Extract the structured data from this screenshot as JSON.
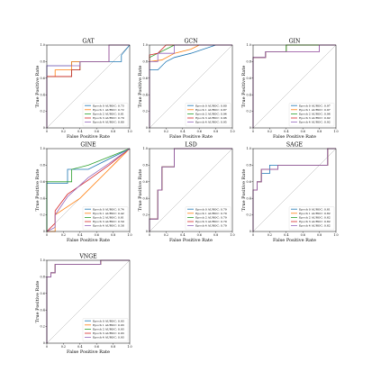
{
  "palette": [
    "#1f77b4",
    "#ff7f0e",
    "#2ca02c",
    "#d62728",
    "#9467bd"
  ],
  "chart_data": [
    {
      "type": "line",
      "title": "GAT",
      "xlabel": "False Positive Rate",
      "ylabel": "True Positive Rate",
      "xlim": [
        0,
        1
      ],
      "ylim": [
        0,
        1
      ],
      "xticks": [
        "0",
        "0.2",
        "0.4",
        "0.6",
        "0.8",
        "1.0"
      ],
      "yticks": [
        "0",
        "0.2",
        "0.4",
        "0.6",
        "0.8",
        "1.0"
      ],
      "legend_position": "lower-right",
      "series": [
        {
          "name": "Epoch 0 AUROC: 0.73",
          "x": [
            0,
            0,
            0.3,
            0.3,
            0.5,
            0.5,
            0.9,
            0.9,
            1.0
          ],
          "y": [
            0,
            0.75,
            0.75,
            0.8,
            0.8,
            0.8,
            0.8,
            0.88,
            1.0
          ]
        },
        {
          "name": "Epoch 1 AUROC: 0.72",
          "x": [
            0,
            0,
            0.1,
            0.1,
            0.3,
            0.3,
            0.75,
            0.75,
            1.0
          ],
          "y": [
            0,
            0.62,
            0.62,
            0.7,
            0.7,
            0.8,
            0.8,
            1.0,
            1.0
          ]
        },
        {
          "name": "Epoch 2 AUROC: 0.81",
          "x": [
            0,
            0,
            0.3,
            0.3,
            0.4,
            0.4,
            0.75,
            0.75,
            1.0
          ],
          "y": [
            0,
            0.62,
            0.62,
            0.7,
            0.7,
            0.8,
            0.8,
            1.0,
            1.0
          ]
        },
        {
          "name": "Epoch 3 AUROC: 0.79",
          "x": [
            0,
            0,
            0.3,
            0.3,
            0.4,
            0.4,
            0.75,
            0.75,
            1.0
          ],
          "y": [
            0,
            0.62,
            0.62,
            0.7,
            0.7,
            0.8,
            0.8,
            1.0,
            1.0
          ]
        },
        {
          "name": "Epoch 4 AUROC: 0.80",
          "x": [
            0,
            0,
            0.3,
            0.3,
            0.4,
            0.4,
            0.75,
            0.75,
            1.0
          ],
          "y": [
            0,
            0.75,
            0.75,
            0.75,
            0.75,
            0.8,
            0.8,
            1.0,
            1.0
          ]
        }
      ]
    },
    {
      "type": "line",
      "title": "GCN",
      "xlabel": "False Positive Rate",
      "ylabel": "True Positive Rate",
      "xlim": [
        0,
        1
      ],
      "ylim": [
        0,
        1
      ],
      "xticks": [
        "0",
        "0.2",
        "0.4",
        "0.6",
        "0.8",
        "1.0"
      ],
      "yticks": [
        "0",
        "0.2",
        "0.4",
        "0.6",
        "0.8",
        "1.0"
      ],
      "legend_position": "lower-right",
      "series": [
        {
          "name": "Epoch 0 AUROC: 0.80",
          "x": [
            0,
            0,
            0.1,
            0.2,
            0.3,
            0.5,
            0.8,
            1.0
          ],
          "y": [
            0,
            0.7,
            0.7,
            0.8,
            0.85,
            0.9,
            1.0,
            1.0
          ]
        },
        {
          "name": "Epoch 1 AUROC: 0.87",
          "x": [
            0,
            0,
            0.15,
            0.3,
            0.5,
            0.6,
            1.0
          ],
          "y": [
            0,
            0.8,
            0.82,
            0.9,
            0.95,
            1.0,
            1.0
          ]
        },
        {
          "name": "Epoch 2 AUROC: 0.94",
          "x": [
            0,
            0,
            0.1,
            0.2,
            0.3,
            0.4,
            1.0
          ],
          "y": [
            0,
            0.85,
            0.9,
            0.95,
            1.0,
            1.0,
            1.0
          ]
        },
        {
          "name": "Epoch 3 AUROC: 0.96",
          "x": [
            0,
            0,
            0.1,
            0.2,
            0.3,
            1.0
          ],
          "y": [
            0,
            0.88,
            0.9,
            1.0,
            1.0,
            1.0
          ]
        },
        {
          "name": "Epoch 4 AUROC: 0.95",
          "x": [
            0,
            0,
            0.1,
            0.1,
            0.3,
            0.3,
            1.0
          ],
          "y": [
            0,
            0.8,
            0.8,
            0.9,
            0.9,
            1.0,
            1.0
          ]
        }
      ]
    },
    {
      "type": "line",
      "title": "GIN",
      "xlabel": "False Positive Rate",
      "ylabel": "True Positive Rate",
      "xlim": [
        0,
        1
      ],
      "ylim": [
        0,
        1
      ],
      "xticks": [
        "0",
        "0.2",
        "0.4",
        "0.6",
        "0.8",
        "1.0"
      ],
      "yticks": [
        "0",
        "0.2",
        "0.4",
        "0.6",
        "0.8",
        "1.0"
      ],
      "legend_position": "lower-right",
      "series": [
        {
          "name": "Epoch 0 AUROC: 0.97",
          "x": [
            0,
            0,
            0.15,
            0.15,
            0.4,
            0.4,
            1.0
          ],
          "y": [
            0,
            0.85,
            0.85,
            0.92,
            0.92,
            1.0,
            1.0
          ]
        },
        {
          "name": "Epoch 1 AUROC: 0.97",
          "x": [
            0,
            0,
            0.15,
            0.15,
            0.4,
            0.4,
            1.0
          ],
          "y": [
            0,
            0.85,
            0.85,
            0.92,
            0.92,
            1.0,
            1.0
          ]
        },
        {
          "name": "Epoch 2 AUROC: 0.96",
          "x": [
            0,
            0,
            0.15,
            0.15,
            0.4,
            0.4,
            1.0
          ],
          "y": [
            0,
            0.85,
            0.85,
            0.92,
            0.92,
            1.0,
            1.0
          ]
        },
        {
          "name": "Epoch 3 AUROC: 0.92",
          "x": [
            0,
            0,
            0.15,
            0.15,
            0.8,
            0.8,
            1.0
          ],
          "y": [
            0,
            0.85,
            0.85,
            0.92,
            0.92,
            1.0,
            1.0
          ]
        },
        {
          "name": "Epoch 4 AUROC: 0.92",
          "x": [
            0,
            0,
            0.15,
            0.15,
            0.8,
            0.8,
            1.0
          ],
          "y": [
            0,
            0.85,
            0.85,
            0.92,
            0.92,
            1.0,
            1.0
          ]
        }
      ]
    },
    {
      "type": "line",
      "title": "GINE",
      "xlabel": "False Positive Rate",
      "ylabel": "True Positive Rate",
      "xlim": [
        0,
        1
      ],
      "ylim": [
        0,
        1
      ],
      "xticks": [
        "0",
        "0.2",
        "0.4",
        "0.6",
        "0.8",
        "1.0"
      ],
      "yticks": [
        "0",
        "0.2",
        "0.4",
        "0.6",
        "0.8",
        "1.0"
      ],
      "legend_position": "lower-right",
      "series": [
        {
          "name": "Epoch 0 AUROC: 0.74",
          "x": [
            0,
            0,
            0.25,
            0.25,
            0.5,
            1.0
          ],
          "y": [
            0,
            0.58,
            0.58,
            0.75,
            0.75,
            1.0
          ]
        },
        {
          "name": "Epoch 1 AUROC: 0.42",
          "x": [
            0,
            0.1,
            0.1,
            0.4,
            0.7,
            1.0
          ],
          "y": [
            0,
            0,
            0.2,
            0.4,
            0.7,
            1.0
          ]
        },
        {
          "name": "Epoch 2 AUROC: 0.81",
          "x": [
            0,
            0,
            0.3,
            0.3,
            0.5,
            0.75,
            1.0
          ],
          "y": [
            0,
            0.6,
            0.6,
            0.75,
            0.8,
            0.9,
            1.0
          ]
        },
        {
          "name": "Epoch 3 AUROC: 0.59",
          "x": [
            0,
            0.1,
            0.1,
            0.25,
            0.5,
            0.75,
            1.0
          ],
          "y": [
            0,
            0.1,
            0.25,
            0.45,
            0.62,
            0.8,
            1.0
          ]
        },
        {
          "name": "Epoch 4 AUROC: 0.58",
          "x": [
            0,
            0.1,
            0.1,
            0.25,
            0.5,
            0.75,
            1.0
          ],
          "y": [
            0,
            0.05,
            0.2,
            0.42,
            0.65,
            0.82,
            1.0
          ]
        }
      ]
    },
    {
      "type": "line",
      "title": "LSD",
      "xlabel": "False Positive Rate",
      "ylabel": "True Positive Rate",
      "xlim": [
        0,
        1
      ],
      "ylim": [
        0,
        1
      ],
      "xticks": [
        "0",
        "0.2",
        "0.4",
        "0.6",
        "0.8",
        "1.0"
      ],
      "yticks": [
        "0",
        "0.2",
        "0.4",
        "0.6",
        "0.8",
        "1.0"
      ],
      "legend_position": "lower-right",
      "series": [
        {
          "name": "Epoch 0 AUROC: 0.79",
          "x": [
            0,
            0,
            0.1,
            0.1,
            0.15,
            0.15,
            0.3,
            0.3,
            1.0
          ],
          "y": [
            0,
            0.15,
            0.15,
            0.5,
            0.5,
            0.78,
            0.78,
            1.0,
            1.0
          ]
        },
        {
          "name": "Epoch 1 AUROC: 0.79",
          "x": [
            0,
            0,
            0.1,
            0.1,
            0.15,
            0.15,
            0.3,
            0.3,
            1.0
          ],
          "y": [
            0,
            0.15,
            0.15,
            0.5,
            0.5,
            0.78,
            0.78,
            1.0,
            1.0
          ]
        },
        {
          "name": "Epoch 2 AUROC: 0.79",
          "x": [
            0,
            0,
            0.1,
            0.1,
            0.15,
            0.15,
            0.3,
            0.3,
            1.0
          ],
          "y": [
            0,
            0.15,
            0.15,
            0.5,
            0.5,
            0.78,
            0.78,
            1.0,
            1.0
          ]
        },
        {
          "name": "Epoch 3 AUROC: 0.79",
          "x": [
            0,
            0,
            0.1,
            0.1,
            0.15,
            0.15,
            0.3,
            0.3,
            1.0
          ],
          "y": [
            0,
            0.15,
            0.15,
            0.5,
            0.5,
            0.78,
            0.78,
            1.0,
            1.0
          ]
        },
        {
          "name": "Epoch 4 AUROC: 0.79",
          "x": [
            0,
            0,
            0.1,
            0.1,
            0.15,
            0.15,
            0.3,
            0.3,
            1.0
          ],
          "y": [
            0,
            0.15,
            0.15,
            0.5,
            0.5,
            0.78,
            0.78,
            1.0,
            1.0
          ]
        }
      ]
    },
    {
      "type": "line",
      "title": "SAGE",
      "xlabel": "False Positive Rate",
      "ylabel": "True Positive Rate",
      "xlim": [
        0,
        1
      ],
      "ylim": [
        0,
        1
      ],
      "xticks": [
        "0",
        "0.2",
        "0.4",
        "0.6",
        "0.8",
        "1.0"
      ],
      "yticks": [
        "0",
        "0.2",
        "0.4",
        "0.6",
        "0.8",
        "1.0"
      ],
      "legend_position": "lower-right",
      "series": [
        {
          "name": "Epoch 0 AUROC: 0.81",
          "x": [
            0,
            0,
            0.05,
            0.05,
            0.1,
            0.1,
            0.2,
            0.2,
            0.9,
            0.9,
            1.0
          ],
          "y": [
            0,
            0.5,
            0.5,
            0.6,
            0.6,
            0.7,
            0.7,
            0.8,
            0.8,
            1.0,
            1.0
          ]
        },
        {
          "name": "Epoch 1 AUROC: 0.82",
          "x": [
            0,
            0,
            0.05,
            0.05,
            0.1,
            0.1,
            0.3,
            0.3,
            0.9,
            0.9,
            1.0
          ],
          "y": [
            0,
            0.5,
            0.5,
            0.6,
            0.6,
            0.75,
            0.75,
            0.8,
            0.8,
            1.0,
            1.0
          ]
        },
        {
          "name": "Epoch 2 AUROC: 0.82",
          "x": [
            0,
            0,
            0.05,
            0.05,
            0.1,
            0.1,
            0.3,
            0.3,
            0.9,
            0.9,
            1.0
          ],
          "y": [
            0,
            0.5,
            0.5,
            0.6,
            0.6,
            0.75,
            0.75,
            0.8,
            0.8,
            1.0,
            1.0
          ]
        },
        {
          "name": "Epoch 3 AUROC: 0.82",
          "x": [
            0,
            0,
            0.05,
            0.05,
            0.1,
            0.1,
            0.3,
            0.3,
            0.9,
            0.9,
            1.0
          ],
          "y": [
            0,
            0.5,
            0.5,
            0.6,
            0.6,
            0.75,
            0.75,
            0.8,
            0.8,
            1.0,
            1.0
          ]
        },
        {
          "name": "Epoch 4 AUROC: 0.82",
          "x": [
            0,
            0,
            0.05,
            0.05,
            0.1,
            0.1,
            0.3,
            0.3,
            0.9,
            0.9,
            1.0
          ],
          "y": [
            0,
            0.5,
            0.5,
            0.6,
            0.6,
            0.75,
            0.75,
            0.8,
            0.8,
            1.0,
            1.0
          ]
        }
      ]
    },
    {
      "type": "line",
      "title": "VNGE",
      "xlabel": "False Positive Rate",
      "ylabel": "True Positive Rate",
      "xlim": [
        0,
        1
      ],
      "ylim": [
        0,
        1
      ],
      "xticks": [
        "0",
        "0.2",
        "0.4",
        "0.6",
        "0.8",
        "1.0"
      ],
      "yticks": [
        "0",
        "0.2",
        "0.4",
        "0.6",
        "0.8",
        "1.0"
      ],
      "legend_position": "lower-right",
      "series": [
        {
          "name": "Epoch 0 AUROC: 0.93",
          "x": [
            0,
            0,
            0.05,
            0.05,
            0.1,
            0.1,
            0.65,
            0.65,
            1.0
          ],
          "y": [
            0,
            0.8,
            0.8,
            0.85,
            0.85,
            0.95,
            0.95,
            1.0,
            1.0
          ]
        },
        {
          "name": "Epoch 1 AUROC: 0.93",
          "x": [
            0,
            0,
            0.05,
            0.05,
            0.1,
            0.1,
            0.65,
            0.65,
            1.0
          ],
          "y": [
            0,
            0.8,
            0.8,
            0.85,
            0.85,
            0.95,
            0.95,
            1.0,
            1.0
          ]
        },
        {
          "name": "Epoch 2 AUROC: 0.93",
          "x": [
            0,
            0,
            0.05,
            0.05,
            0.1,
            0.1,
            0.65,
            0.65,
            1.0
          ],
          "y": [
            0,
            0.8,
            0.8,
            0.85,
            0.85,
            0.95,
            0.95,
            1.0,
            1.0
          ]
        },
        {
          "name": "Epoch 3 AUROC: 0.93",
          "x": [
            0,
            0,
            0.05,
            0.05,
            0.1,
            0.1,
            0.65,
            0.65,
            1.0
          ],
          "y": [
            0,
            0.8,
            0.8,
            0.85,
            0.85,
            0.95,
            0.95,
            1.0,
            1.0
          ]
        },
        {
          "name": "Epoch 4 AUROC: 0.93",
          "x": [
            0,
            0,
            0.05,
            0.05,
            0.1,
            0.1,
            0.65,
            0.65,
            1.0
          ],
          "y": [
            0,
            0.8,
            0.8,
            0.85,
            0.85,
            0.95,
            0.95,
            1.0,
            1.0
          ]
        }
      ]
    }
  ]
}
